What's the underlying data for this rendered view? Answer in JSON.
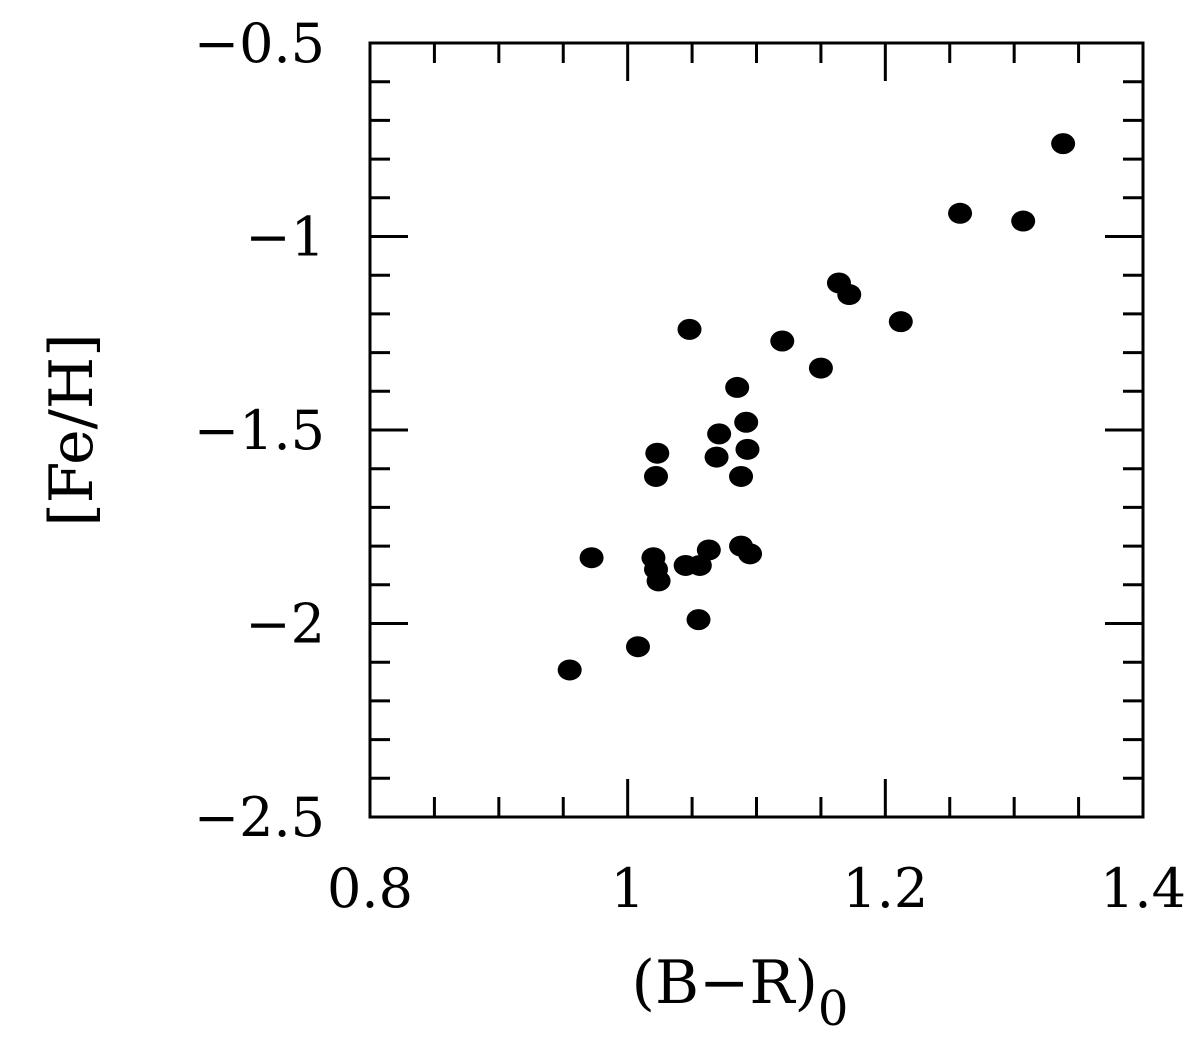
{
  "chart_data": {
    "type": "scatter",
    "title": "",
    "xlabel_main": "(B−R)",
    "xlabel_subscript": "0",
    "ylabel": "[Fe/H]",
    "xlim": [
      0.8,
      1.4
    ],
    "ylim": [
      -2.5,
      -0.5
    ],
    "x_major_ticks": [
      0.8,
      1.0,
      1.2,
      1.4
    ],
    "x_tick_labels": [
      "0.8",
      "1",
      "1.2",
      "1.4"
    ],
    "x_minor_step": 0.05,
    "y_major_ticks": [
      -2.5,
      -2.0,
      -1.5,
      -1.0,
      -0.5
    ],
    "y_tick_labels": [
      "−2.5",
      "−2",
      "−1.5",
      "−1",
      "−0.5"
    ],
    "y_minor_step": 0.1,
    "grid": false,
    "marker_color": "#000000",
    "points": [
      {
        "x": 0.955,
        "y": -2.12
      },
      {
        "x": 0.972,
        "y": -1.83
      },
      {
        "x": 1.008,
        "y": -2.06
      },
      {
        "x": 1.02,
        "y": -1.83
      },
      {
        "x": 1.022,
        "y": -1.86
      },
      {
        "x": 1.024,
        "y": -1.89
      },
      {
        "x": 1.022,
        "y": -1.62
      },
      {
        "x": 1.023,
        "y": -1.56
      },
      {
        "x": 1.048,
        "y": -1.24
      },
      {
        "x": 1.045,
        "y": -1.85
      },
      {
        "x": 1.056,
        "y": -1.85
      },
      {
        "x": 1.063,
        "y": -1.81
      },
      {
        "x": 1.055,
        "y": -1.99
      },
      {
        "x": 1.069,
        "y": -1.57
      },
      {
        "x": 1.071,
        "y": -1.51
      },
      {
        "x": 1.085,
        "y": -1.39
      },
      {
        "x": 1.092,
        "y": -1.48
      },
      {
        "x": 1.093,
        "y": -1.55
      },
      {
        "x": 1.088,
        "y": -1.62
      },
      {
        "x": 1.088,
        "y": -1.8
      },
      {
        "x": 1.095,
        "y": -1.82
      },
      {
        "x": 1.12,
        "y": -1.27
      },
      {
        "x": 1.15,
        "y": -1.34
      },
      {
        "x": 1.164,
        "y": -1.12
      },
      {
        "x": 1.172,
        "y": -1.15
      },
      {
        "x": 1.212,
        "y": -1.22
      },
      {
        "x": 1.258,
        "y": -0.94
      },
      {
        "x": 1.307,
        "y": -0.96
      },
      {
        "x": 1.338,
        "y": -0.76
      }
    ]
  }
}
